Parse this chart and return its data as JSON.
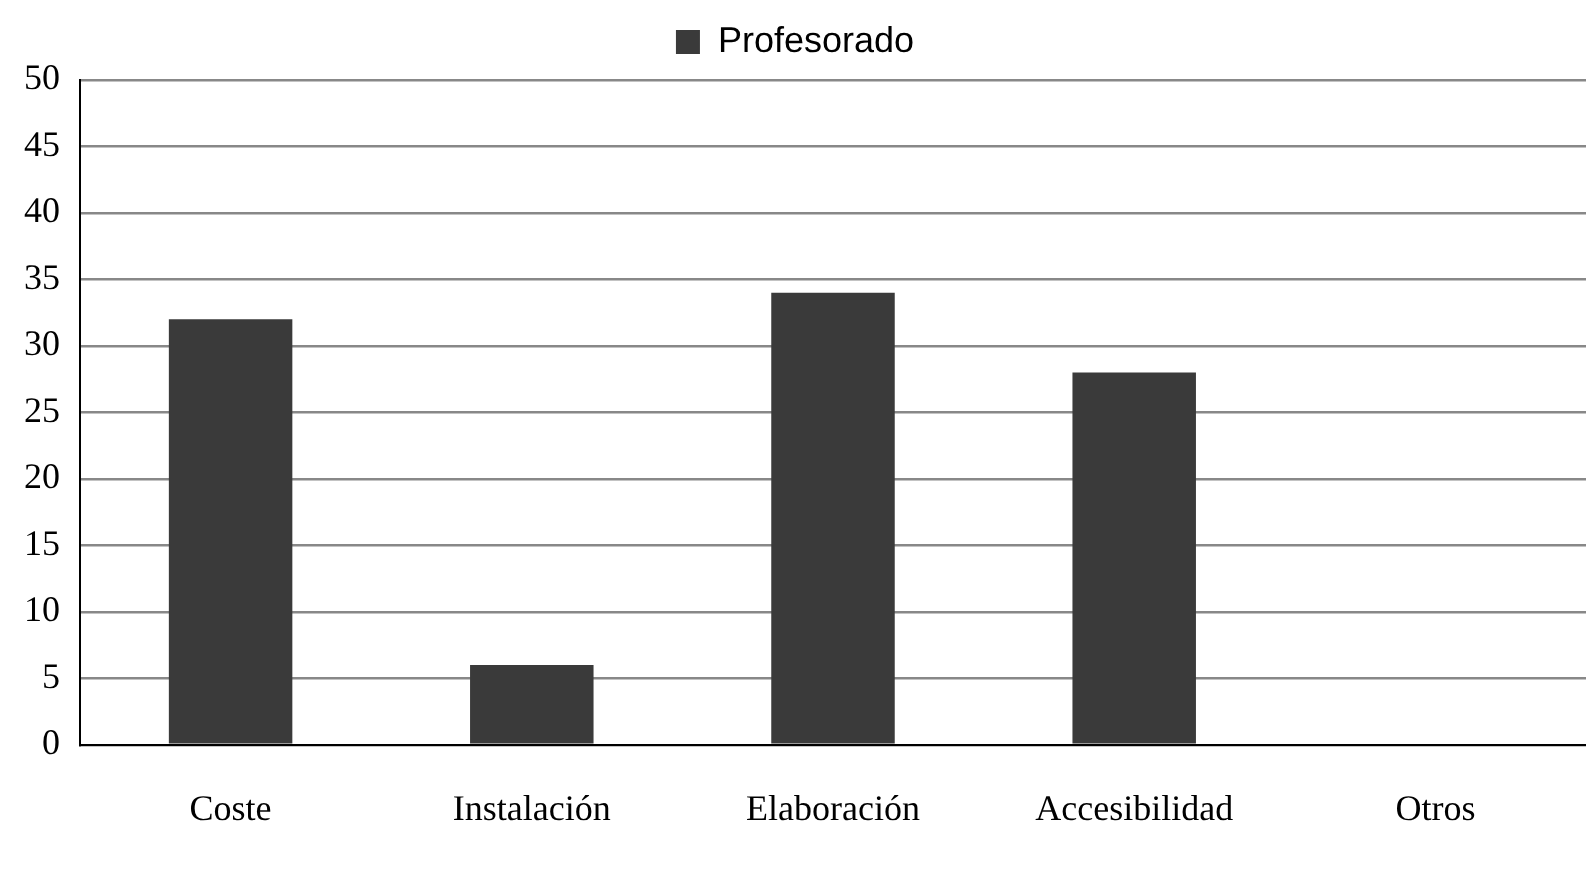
{
  "chart_data": {
    "type": "bar",
    "categories": [
      "Coste",
      "Instalación",
      "Elaboración",
      "Accesibilidad",
      "Otros"
    ],
    "series": [
      {
        "name": "Profesorado",
        "color": "#3a3a3a",
        "values": [
          32,
          6,
          34,
          28,
          0
        ]
      }
    ],
    "ylim": [
      0,
      50
    ],
    "yticks": [
      0,
      5,
      10,
      15,
      20,
      25,
      30,
      35,
      40,
      45,
      50
    ],
    "grid": "y",
    "legend": "top"
  }
}
